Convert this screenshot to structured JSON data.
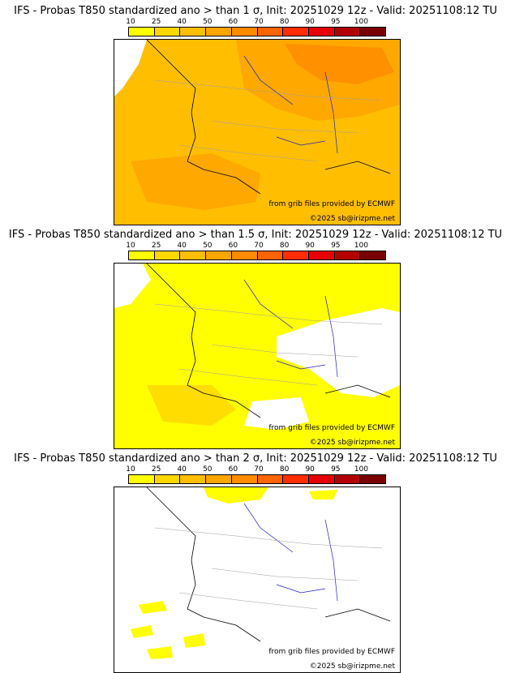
{
  "colors": {
    "scale": [
      "#ffff00",
      "#ffd700",
      "#ffbe00",
      "#ffa500",
      "#ff8c00",
      "#ff6400",
      "#ff2d00",
      "#e60000",
      "#b40000",
      "#780000"
    ],
    "sea": "#ffffff",
    "coast": "#000000",
    "rivers": "#2020c0",
    "borders": "#a0a0a0"
  },
  "colorbar": {
    "ticks": [
      "10",
      "25",
      "40",
      "50",
      "60",
      "70",
      "80",
      "90",
      "95",
      "100"
    ]
  },
  "credits": {
    "source": "from grib files provided by ECMWF",
    "copyright": "©2025 sb@irizpme.net"
  },
  "panels": [
    {
      "title": "IFS - Probas T850  standardized ano > than 1 σ, Init: 20251029 12z - Valid: 20251108:12 TU",
      "threshold": "1 σ",
      "fill": "#ffbe00",
      "fill2": "#ffa500",
      "fill3": "#ff8c00"
    },
    {
      "title": "IFS - Probas T850  standardized ano > than 1.5 σ, Init: 20251029 12z - Valid: 20251108:12 TU",
      "threshold": "1.5 σ",
      "fill": "#ffff00",
      "fill2": "#ffd700",
      "fill3": "#ffbe00"
    },
    {
      "title": "IFS - Probas T850  standardized ano > than 2 σ, Init: 20251029 12z - Valid: 20251108:12 TU",
      "threshold": "2 σ",
      "fill": "#ffff00",
      "fill2": "#ffff00",
      "fill3": "#ffd700"
    }
  ]
}
